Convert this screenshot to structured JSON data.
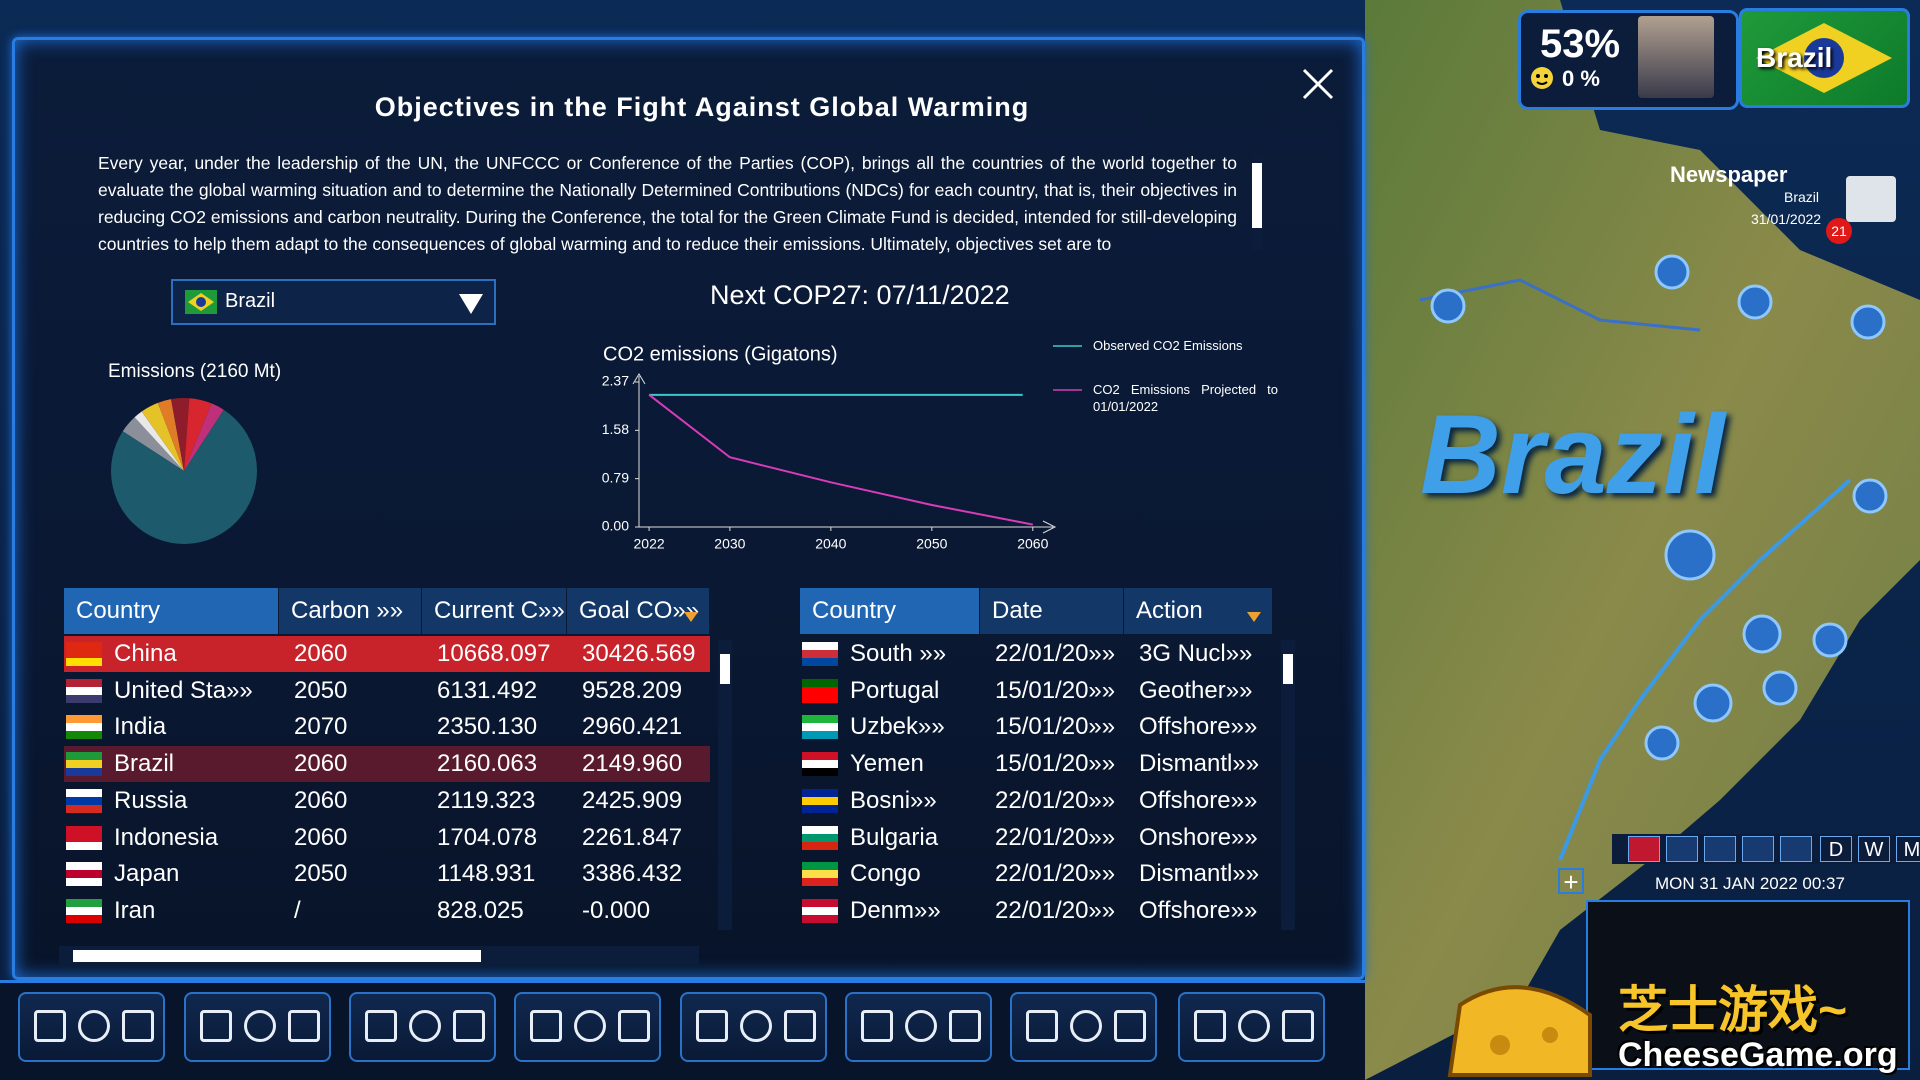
{
  "header": {
    "title": "Objectives in the Fight Against Global Warming"
  },
  "description": "Every year, under the leadership of the UN, the UNFCCC or Conference of the Parties (COP), brings all the countries of the world together to evaluate the global warming situation and to determine the Nationally Determined Contributions (NDCs) for each country, that is, their objectives in reducing CO2 emissions and carbon neutrality. During the Conference, the total for the Green Climate Fund is decided, intended for still-developing countries to help them adapt to the consequences of global warming and to reduce their emissions. Ultimately, objectives set are to",
  "country_selector": "Brazil",
  "next_cop": "Next COP27: 07/11/2022",
  "chart_data": [
    {
      "type": "pie",
      "title": "Emissions (2160 Mt)",
      "values": [
        4,
        2,
        4,
        3,
        4,
        5,
        3,
        75
      ],
      "colors": [
        "#8a8f99",
        "#e8e8e8",
        "#e6c229",
        "#e07b28",
        "#8e1c2a",
        "#d8262e",
        "#c0307a",
        "#1d5a6b"
      ]
    },
    {
      "type": "line",
      "title": "CO2 emissions (Gigatons)",
      "xlim": [
        2021,
        2062
      ],
      "xticks": [
        2022,
        2030,
        2040,
        2050,
        2060
      ],
      "ylim": [
        0,
        2.37
      ],
      "yticks": [
        {
          "value": 0,
          "label": "0.00"
        },
        0.79,
        1.58,
        2.37
      ],
      "series": [
        {
          "name": "Observed CO2 Emissions",
          "color": "#3cc8c8",
          "x": [
            2022,
            2059
          ],
          "values": [
            2.16,
            2.16
          ]
        },
        {
          "name": "CO2 Emissions Projected to 01/01/2022",
          "color": "#d83cb8",
          "x": [
            2022,
            2030,
            2040,
            2050,
            2060
          ],
          "values": [
            2.16,
            1.14,
            0.73,
            0.36,
            0.04
          ]
        }
      ]
    }
  ],
  "emissions_table": {
    "columns": [
      "Country",
      "Carbon »»",
      "Current C»»",
      "Goal CO»»"
    ],
    "rows": [
      [
        "China",
        "2060",
        "10668.097",
        "30426.569"
      ],
      [
        "United Sta»»",
        "2050",
        "6131.492",
        "9528.209"
      ],
      [
        "India",
        "2070",
        "2350.130",
        "2960.421"
      ],
      [
        "Brazil",
        "2060",
        "2160.063",
        "2149.960"
      ],
      [
        "Russia",
        "2060",
        "2119.323",
        "2425.909"
      ],
      [
        "Indonesia",
        "2060",
        "1704.078",
        "2261.847"
      ],
      [
        "Japan",
        "2050",
        "1148.931",
        "3386.432"
      ],
      [
        "Iran",
        "/",
        "828.025",
        "-0.000"
      ]
    ]
  },
  "actions_table": {
    "columns": [
      "Country",
      "Date",
      "Action"
    ],
    "rows": [
      [
        "South »»",
        "22/01/20»»",
        "3G Nucl»»"
      ],
      [
        "Portugal",
        "15/01/20»»",
        "Geother»»"
      ],
      [
        "Uzbek»»",
        "15/01/20»»",
        "Offshore»»"
      ],
      [
        "Yemen",
        "15/01/20»»",
        "Dismantl»»"
      ],
      [
        "Bosni»»",
        "22/01/20»»",
        "Offshore»»"
      ],
      [
        "Bulgaria",
        "22/01/20»»",
        "Onshore»»"
      ],
      [
        "Congo",
        "22/01/20»»",
        "Dismantl»»"
      ],
      [
        "Denm»»",
        "22/01/20»»",
        "Offshore»»"
      ]
    ]
  },
  "hud": {
    "approval": "53%",
    "happiness": "0 %",
    "country": "Brazil",
    "newspaper": {
      "title": "Newspaper",
      "country": "Brazil",
      "date": "31/01/2022",
      "count": "21"
    },
    "map_label": "Brazil",
    "speed_buttons": [
      "D",
      "W",
      "M"
    ],
    "datetime": "MON 31 JAN 2022   00:37"
  },
  "watermark": {
    "chinese": "芝士游戏~",
    "site": "CheeseGame.org"
  }
}
